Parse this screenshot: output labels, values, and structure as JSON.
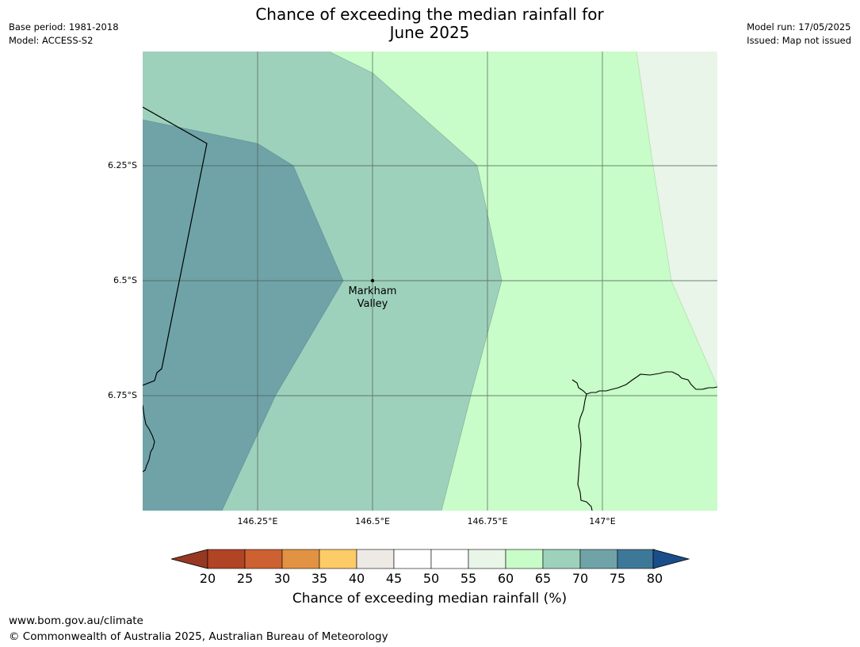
{
  "header": {
    "base_period": "Base period: 1981-2018",
    "model": "Model: ACCESS-S2",
    "model_run": "Model run: 17/05/2025",
    "issued": "Issued: Map not issued",
    "title_line1": "Chance of exceeding the median rainfall for",
    "title_line2": "June 2025"
  },
  "map": {
    "lat_labels": [
      "6.25°S",
      "6.5°S",
      "6.75°S"
    ],
    "lon_labels": [
      "146.25°E",
      "146.5°E",
      "146.75°E",
      "147°E"
    ],
    "place": {
      "line1": "Markham",
      "line2": "Valley"
    },
    "zone_colors": {
      "70-75": "#6fa3a8",
      "65-70": "#9ed1bb",
      "60-65": "#c8fcc8",
      "55-60": "#e9f5e9"
    }
  },
  "colorbar": {
    "ticks": [
      "20",
      "25",
      "30",
      "35",
      "40",
      "45",
      "50",
      "55",
      "60",
      "65",
      "70",
      "75",
      "80"
    ],
    "colors": [
      "#b04424",
      "#cd6131",
      "#e19343",
      "#fdcb67",
      "#ede9e5",
      "#ffffff",
      "#ffffff",
      "#e9f5e9",
      "#c8fcc8",
      "#9ed1bb",
      "#6fa3a8",
      "#3e7899"
    ],
    "under_color": "#973823",
    "over_color": "#1a4e8a",
    "label": "Chance of exceeding median rainfall (%)"
  },
  "footer": {
    "url": "www.bom.gov.au/climate",
    "copyright": "© Commonwealth of Australia 2025, Australian Bureau of Meteorology"
  }
}
